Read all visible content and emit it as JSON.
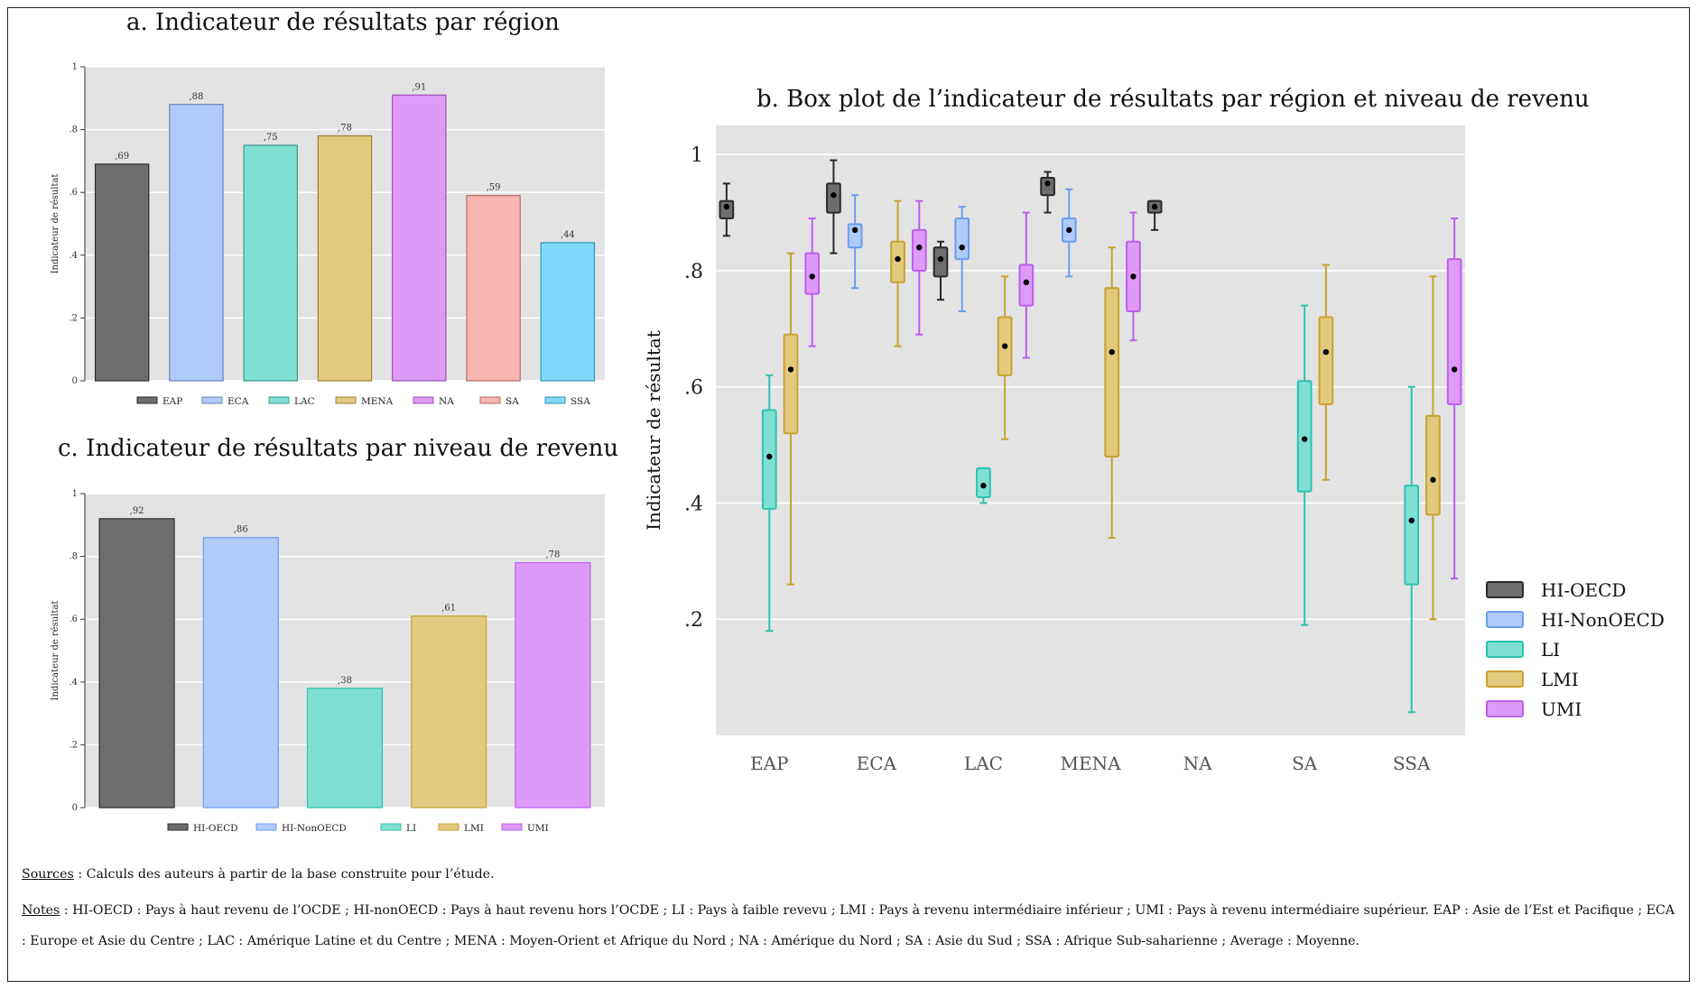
{
  "titles": {
    "a": "a. Indicateur de résultats par région",
    "b": "b. Box plot de l’indicateur de résultats par région et niveau de revenu",
    "c": "c. Indicateur de résultats par niveau de revenu"
  },
  "footer": {
    "sources_label": "Sources",
    "sources_text": " : Calculs des auteurs à partir de la base construite pour l’étude.",
    "notes_label": "Notes",
    "notes_text": " : HI-OECD : Pays à haut revenu de l’OCDE ; HI-nonOECD : Pays à haut revenu hors l’OCDE ; LI : Pays à faible revevu ; LMI : Pays à revenu intermédiaire inférieur ; UMI : Pays à revenu intermédiaire supérieur. EAP : Asie de l’Est et Pacifique ; ECA : Europe et Asie du Centre ; LAC : Amérique Latine et du Centre ; MENA : Moyen-Orient et Afrique du Nord ; NA : Amérique du Nord ; SA : Asie du Sud ; SSA : Afrique Sub-saharienne ; Average : Moyenne."
  },
  "colors": {
    "EAP": "#6e6e6e",
    "ECA": "#aecbfa",
    "LAC": "#7fe0d2",
    "MENA": "#e2c97e",
    "NA": "#dd9af7",
    "SA": "#f8b4b0",
    "SSA": "#80d8fa",
    "HI-OECD": "#6e6e6e",
    "HI-NonOECD": "#aecbfa",
    "LI": "#7fe0d2",
    "LMI": "#e2c97e",
    "UMI": "#dd9af7",
    "stroke_HI-OECD": "#2a2a2a",
    "stroke_HI-NonOECD": "#6b9ef0",
    "stroke_LI": "#2cc3ae",
    "stroke_LMI": "#c9a230",
    "stroke_UMI": "#bd5ef0",
    "plot_bg": "#e3e3e3",
    "grid": "#ffffff"
  },
  "chart_data": [
    {
      "id": "a",
      "type": "bar",
      "title": "a. Indicateur de résultats par région",
      "ylabel": "Indicateur de résultat",
      "ylim": [
        0,
        1
      ],
      "yticks": [
        "0",
        ".2",
        ".4",
        ".6",
        ".8",
        "1"
      ],
      "categories": [
        "EAP",
        "ECA",
        "LAC",
        "MENA",
        "NA",
        "SA",
        "SSA"
      ],
      "values": [
        0.69,
        0.88,
        0.75,
        0.78,
        0.91,
        0.59,
        0.44
      ],
      "value_labels": [
        ",69",
        ",88",
        ",75",
        ",78",
        ",91",
        ",59",
        ",44"
      ],
      "legend": [
        "EAP",
        "ECA",
        "LAC",
        "MENA",
        "NA",
        "SA",
        "SSA"
      ],
      "legend_position": "bottom"
    },
    {
      "id": "c",
      "type": "bar",
      "title": "c. Indicateur de résultats par niveau de revenu",
      "ylabel": "Indicateur de résultat",
      "ylim": [
        0,
        1
      ],
      "yticks": [
        "0",
        ".2",
        ".4",
        ".6",
        ".8",
        "1"
      ],
      "categories": [
        "HI-OECD",
        "HI-NonOECD",
        "LI",
        "LMI",
        "UMI"
      ],
      "values": [
        0.92,
        0.86,
        0.38,
        0.61,
        0.78
      ],
      "value_labels": [
        ",92",
        ",86",
        ",38",
        ",61",
        ",78"
      ],
      "legend": [
        "HI-OECD",
        "HI-NonOECD",
        "LI",
        "LMI",
        "UMI"
      ],
      "legend_position": "bottom"
    },
    {
      "id": "b",
      "type": "box",
      "title": "b. Box plot de l’indicateur de résultats par région et niveau de revenu",
      "ylabel": "Indicateur de résultat",
      "ylim": [
        0,
        1.05
      ],
      "yticks": [
        ".2",
        ".4",
        ".6",
        ".8",
        "1"
      ],
      "categories": [
        "EAP",
        "ECA",
        "LAC",
        "MENA",
        "NA",
        "SA",
        "SSA"
      ],
      "legend": [
        "HI-OECD",
        "HI-NonOECD",
        "LI",
        "LMI",
        "UMI"
      ],
      "legend_position": "right",
      "boxes": [
        {
          "region": "EAP",
          "group": "HI-OECD",
          "lo": 0.86,
          "q1": 0.89,
          "q3": 0.92,
          "hi": 0.95,
          "mean": 0.91
        },
        {
          "region": "EAP",
          "group": "LI",
          "lo": 0.18,
          "q1": 0.39,
          "q3": 0.56,
          "hi": 0.62,
          "mean": 0.48
        },
        {
          "region": "EAP",
          "group": "LMI",
          "lo": 0.26,
          "q1": 0.52,
          "q3": 0.69,
          "hi": 0.83,
          "mean": 0.63
        },
        {
          "region": "EAP",
          "group": "UMI",
          "lo": 0.67,
          "q1": 0.76,
          "q3": 0.83,
          "hi": 0.89,
          "mean": 0.79
        },
        {
          "region": "ECA",
          "group": "HI-OECD",
          "lo": 0.83,
          "q1": 0.9,
          "q3": 0.95,
          "hi": 0.99,
          "mean": 0.93
        },
        {
          "region": "ECA",
          "group": "HI-NonOECD",
          "lo": 0.77,
          "q1": 0.84,
          "q3": 0.88,
          "hi": 0.93,
          "mean": 0.87
        },
        {
          "region": "ECA",
          "group": "LMI",
          "lo": 0.67,
          "q1": 0.78,
          "q3": 0.85,
          "hi": 0.92,
          "mean": 0.82
        },
        {
          "region": "ECA",
          "group": "UMI",
          "lo": 0.69,
          "q1": 0.8,
          "q3": 0.87,
          "hi": 0.92,
          "mean": 0.84
        },
        {
          "region": "LAC",
          "group": "HI-OECD",
          "lo": 0.75,
          "q1": 0.79,
          "q3": 0.84,
          "hi": 0.85,
          "mean": 0.82
        },
        {
          "region": "LAC",
          "group": "HI-NonOECD",
          "lo": 0.73,
          "q1": 0.82,
          "q3": 0.89,
          "hi": 0.91,
          "mean": 0.84
        },
        {
          "region": "LAC",
          "group": "LI",
          "lo": 0.4,
          "q1": 0.41,
          "q3": 0.46,
          "hi": 0.46,
          "mean": 0.43
        },
        {
          "region": "LAC",
          "group": "LMI",
          "lo": 0.51,
          "q1": 0.62,
          "q3": 0.72,
          "hi": 0.79,
          "mean": 0.67
        },
        {
          "region": "LAC",
          "group": "UMI",
          "lo": 0.65,
          "q1": 0.74,
          "q3": 0.81,
          "hi": 0.9,
          "mean": 0.78
        },
        {
          "region": "MENA",
          "group": "HI-OECD",
          "lo": 0.9,
          "q1": 0.93,
          "q3": 0.96,
          "hi": 0.97,
          "mean": 0.95
        },
        {
          "region": "MENA",
          "group": "HI-NonOECD",
          "lo": 0.79,
          "q1": 0.85,
          "q3": 0.89,
          "hi": 0.94,
          "mean": 0.87
        },
        {
          "region": "MENA",
          "group": "LMI",
          "lo": 0.34,
          "q1": 0.48,
          "q3": 0.77,
          "hi": 0.84,
          "mean": 0.66
        },
        {
          "region": "MENA",
          "group": "UMI",
          "lo": 0.68,
          "q1": 0.73,
          "q3": 0.85,
          "hi": 0.9,
          "mean": 0.79
        },
        {
          "region": "NA",
          "group": "HI-OECD",
          "lo": 0.87,
          "q1": 0.9,
          "q3": 0.92,
          "hi": 0.92,
          "mean": 0.91
        },
        {
          "region": "SA",
          "group": "LI",
          "lo": 0.19,
          "q1": 0.42,
          "q3": 0.61,
          "hi": 0.74,
          "mean": 0.51
        },
        {
          "region": "SA",
          "group": "LMI",
          "lo": 0.44,
          "q1": 0.57,
          "q3": 0.72,
          "hi": 0.81,
          "mean": 0.66
        },
        {
          "region": "SSA",
          "group": "LI",
          "lo": 0.04,
          "q1": 0.26,
          "q3": 0.43,
          "hi": 0.6,
          "mean": 0.37
        },
        {
          "region": "SSA",
          "group": "LMI",
          "lo": 0.2,
          "q1": 0.38,
          "q3": 0.55,
          "hi": 0.79,
          "mean": 0.44
        },
        {
          "region": "SSA",
          "group": "UMI",
          "lo": 0.27,
          "q1": 0.57,
          "q3": 0.82,
          "hi": 0.89,
          "mean": 0.63
        }
      ]
    }
  ]
}
